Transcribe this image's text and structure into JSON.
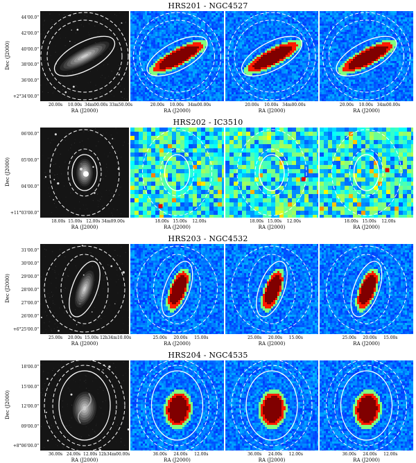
{
  "rows": [
    {
      "title": "HRS201 - NGC4527",
      "ylabel": "Dec (J2000)",
      "xlabel": "RA (J2000)",
      "yticks": [
        "44'00.0\"",
        "42'00.0\"",
        "40'00.0\"",
        "38'00.0\"",
        "36'00.0\"",
        "+2°34'00.0\""
      ],
      "xticks_optical": "20.00s    10.00s  34m00.00s 33m50.00s",
      "xticks_map": "20.00s    10.00s   34m00.00s",
      "style": "edge-on"
    },
    {
      "title": "HRS202 - IC3510",
      "ylabel": "Dec (J2000)",
      "xlabel": "RA (J2000)",
      "yticks": [
        "06'00.0\"",
        "05'00.0\"",
        "04'00.0\"",
        "+11°03'00.0\""
      ],
      "xticks_optical": "18.00s  15.00s   12.00s 34m09.00s",
      "xticks_map": "18.00s   15.00s    12.00s",
      "style": "noise"
    },
    {
      "title": "HRS203 - NGC4532",
      "ylabel": "Dec (J2000)",
      "xlabel": "RA (J2000)",
      "yticks": [
        "31'00.0\"",
        "30'00.0\"",
        "29'00.0\"",
        "28'00.0\"",
        "27'00.0\"",
        "26'00.0\"",
        "+6°25'00.0\""
      ],
      "xticks_optical": "25.00s    20.00s  15.00s 12h34m10.00s",
      "xticks_map": "25.00s     20.00s     15.00s",
      "style": "tilted"
    },
    {
      "title": "HRS204 - NGC4535",
      "ylabel": "Dec (J2000)",
      "xlabel": "RA (J2000)",
      "yticks": [
        "18'00.0\"",
        "15'00.0\"",
        "12'00.0\"",
        "09'00.0\"",
        "+8°06'00.0\""
      ],
      "xticks_optical": "36.00s   24.00s  12.00s 12h34m00.00s",
      "xticks_map": "36.00s     24.00s     12.00s",
      "style": "face-on"
    }
  ]
}
